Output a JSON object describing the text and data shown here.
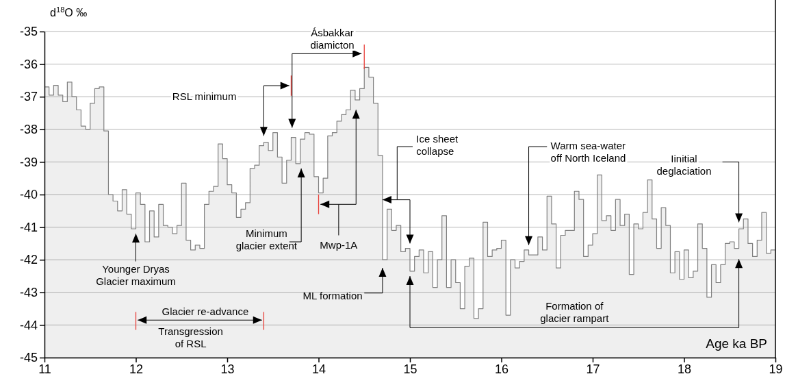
{
  "chart_data": {
    "type": "area",
    "xlabel": "Age ka BP",
    "ylabel": "d$^{18}$O ‰",
    "xlim": [
      11,
      19
    ],
    "ylim": [
      -45,
      -35
    ],
    "xticks": [
      11,
      12,
      13,
      14,
      15,
      16,
      17,
      18,
      19
    ],
    "yticks": [
      -45,
      -44,
      -43,
      -42,
      -41,
      -40,
      -39,
      -38,
      -37,
      -36,
      -35
    ],
    "grid": "y",
    "series": [
      {
        "color": "#808080",
        "x": [
          11,
          11.05,
          11.05,
          11.1,
          11.1,
          11.15,
          11.15,
          11.2,
          11.2,
          11.25,
          11.25,
          11.3,
          11.3,
          11.35,
          11.35,
          11.4,
          11.4,
          11.45,
          11.45,
          11.5,
          11.5,
          11.55,
          11.55,
          11.6,
          11.6,
          11.65,
          11.65,
          11.7,
          11.7,
          11.75,
          11.75,
          11.8,
          11.8,
          11.85,
          11.85,
          11.9,
          11.9,
          11.95,
          11.95,
          12,
          12,
          12.05,
          12.05,
          12.1,
          12.1,
          12.15,
          12.15,
          12.2,
          12.2,
          12.25,
          12.25,
          12.3,
          12.3,
          12.35,
          12.35,
          12.4,
          12.4,
          12.45,
          12.45,
          12.5,
          12.5,
          12.55,
          12.55,
          12.6,
          12.6,
          12.65,
          12.65,
          12.7,
          12.7,
          12.75,
          12.75,
          12.8,
          12.8,
          12.85,
          12.85,
          12.9,
          12.9,
          12.95,
          12.95,
          13,
          13,
          13.05,
          13.05,
          13.1,
          13.1,
          13.15,
          13.15,
          13.2,
          13.2,
          13.25,
          13.25,
          13.3,
          13.3,
          13.35,
          13.35,
          13.4,
          13.4,
          13.45,
          13.45,
          13.5,
          13.5,
          13.55,
          13.55,
          13.6,
          13.6,
          13.65,
          13.65,
          13.7,
          13.7,
          13.75,
          13.75,
          13.8,
          13.8,
          13.85,
          13.85,
          13.9,
          13.9,
          13.95,
          13.95,
          14,
          14,
          14.05,
          14.05,
          14.1,
          14.1,
          14.15,
          14.15,
          14.2,
          14.2,
          14.25,
          14.25,
          14.3,
          14.3,
          14.35,
          14.35,
          14.4,
          14.4,
          14.45,
          14.45,
          14.5,
          14.5,
          14.55,
          14.55,
          14.6,
          14.6,
          14.65,
          14.65,
          14.7,
          14.7,
          14.75,
          14.75,
          14.8,
          14.8,
          14.85,
          14.85,
          14.9,
          14.9,
          14.95,
          14.95,
          15,
          15,
          15.05,
          15.05,
          15.1,
          15.1,
          15.15,
          15.15,
          15.2,
          15.2,
          15.25,
          15.25,
          15.3,
          15.3,
          15.35,
          15.35,
          15.4,
          15.4,
          15.45,
          15.45,
          15.5,
          15.5,
          15.55,
          15.55,
          15.6,
          15.6,
          15.65,
          15.65,
          15.7,
          15.7,
          15.75,
          15.75,
          15.8,
          15.8,
          15.85,
          15.85,
          15.9,
          15.9,
          15.95,
          15.95,
          16,
          16,
          16.05,
          16.05,
          16.1,
          16.1,
          16.15,
          16.15,
          16.2,
          16.2,
          16.25,
          16.25,
          16.3,
          16.3,
          16.35,
          16.35,
          16.4,
          16.4,
          16.45,
          16.45,
          16.5,
          16.5,
          16.55,
          16.55,
          16.6,
          16.6,
          16.65,
          16.65,
          16.7,
          16.7,
          16.75,
          16.75,
          16.8,
          16.8,
          16.85,
          16.85,
          16.9,
          16.9,
          16.95,
          16.95,
          17,
          17,
          17.05,
          17.05,
          17.1,
          17.1,
          17.15,
          17.15,
          17.2,
          17.2,
          17.25,
          17.25,
          17.3,
          17.3,
          17.35,
          17.35,
          17.4,
          17.4,
          17.45,
          17.45,
          17.5,
          17.5,
          17.55,
          17.55,
          17.6,
          17.6,
          17.65,
          17.65,
          17.7,
          17.7,
          17.75,
          17.75,
          17.8,
          17.8,
          17.85,
          17.85,
          17.9,
          17.9,
          17.95,
          17.95,
          18,
          18,
          18.05,
          18.05,
          18.1,
          18.1,
          18.15,
          18.15,
          18.2,
          18.2,
          18.25,
          18.25,
          18.3,
          18.3,
          18.35,
          18.35,
          18.4,
          18.4,
          18.45,
          18.45,
          18.5,
          18.5,
          18.55,
          18.55,
          18.6,
          18.6,
          18.65,
          18.65,
          18.7,
          18.7,
          18.75,
          18.75,
          18.8,
          18.8,
          18.85,
          18.85,
          18.9,
          18.9,
          18.95,
          18.95,
          19
        ],
        "values": [
          -36.7,
          -36.7,
          -36.95,
          -36.95,
          -36.65,
          -36.65,
          -36.95,
          -36.95,
          -37.15,
          -37.15,
          -36.55,
          -36.55,
          -37.0,
          -37.0,
          -37.4,
          -37.4,
          -37.9,
          -37.9,
          -38.0,
          -38.0,
          -37.2,
          -37.2,
          -36.75,
          -36.75,
          -36.7,
          -36.7,
          -38.05,
          -38.05,
          -40.0,
          -40.0,
          -40.2,
          -40.2,
          -40.5,
          -40.5,
          -39.85,
          -39.85,
          -40.6,
          -40.6,
          -41.05,
          -41.05,
          -39.95,
          -39.95,
          -40.3,
          -40.3,
          -41.45,
          -41.45,
          -40.5,
          -40.5,
          -41.3,
          -41.3,
          -40.3,
          -40.3,
          -40.95,
          -40.95,
          -41.0,
          -41.0,
          -41.2,
          -41.2,
          -40.95,
          -40.95,
          -39.65,
          -39.65,
          -41.4,
          -41.4,
          -41.7,
          -41.7,
          -41.55,
          -41.55,
          -41.65,
          -41.65,
          -40.3,
          -40.3,
          -39.9,
          -39.9,
          -39.75,
          -39.75,
          -38.45,
          -38.45,
          -38.9,
          -38.9,
          -39.7,
          -39.7,
          -39.95,
          -39.95,
          -40.7,
          -40.7,
          -40.45,
          -40.45,
          -40.25,
          -40.25,
          -39.2,
          -39.2,
          -39.1,
          -39.1,
          -38.5,
          -38.5,
          -38.4,
          -38.4,
          -38.65,
          -38.65,
          -38.1,
          -38.1,
          -38.85,
          -38.85,
          -39.65,
          -39.65,
          -38.95,
          -38.95,
          -38.25,
          -38.25,
          -39.05,
          -39.05,
          -38.3,
          -38.3,
          -38.1,
          -38.1,
          -38.15,
          -38.15,
          -39.45,
          -39.45,
          -39.95,
          -39.95,
          -39.5,
          -39.5,
          -38.2,
          -38.2,
          -38.1,
          -38.1,
          -37.75,
          -37.75,
          -37.55,
          -37.55,
          -37.4,
          -37.4,
          -36.8,
          -36.8,
          -37.1,
          -37.1,
          -36.75,
          -36.75,
          -36.1,
          -36.1,
          -36.4,
          -36.4,
          -37.2,
          -37.2,
          -38.8,
          -38.8,
          -42.0,
          -42.0,
          -40.45,
          -40.45,
          -41.1,
          -41.1,
          -40.95,
          -40.95,
          -41.75,
          -41.75,
          -41.65,
          -41.65,
          -42.35,
          -42.35,
          -41.9,
          -41.9,
          -41.7,
          -41.7,
          -42.4,
          -42.4,
          -41.75,
          -41.75,
          -42.85,
          -42.85,
          -42.0,
          -42.0,
          -40.65,
          -40.65,
          -42.85,
          -42.85,
          -42.0,
          -42.0,
          -42.7,
          -42.7,
          -43.5,
          -43.5,
          -42.2,
          -42.2,
          -41.95,
          -41.95,
          -43.8,
          -43.8,
          -43.5,
          -43.5,
          -40.85,
          -40.85,
          -41.9,
          -41.9,
          -41.7,
          -41.7,
          -41.65,
          -41.65,
          -41.4,
          -41.4,
          -43.7,
          -43.7,
          -42.0,
          -42.0,
          -42.25,
          -42.25,
          -42.05,
          -42.05,
          -41.7,
          -41.7,
          -41.85,
          -41.85,
          -41.85,
          -41.85,
          -41.3,
          -41.3,
          -41.7,
          -41.7,
          -40.05,
          -40.05,
          -40.9,
          -40.9,
          -42.25,
          -42.25,
          -41.25,
          -41.25,
          -41.1,
          -41.1,
          -41.1,
          -41.1,
          -39.9,
          -39.9,
          -40.15,
          -40.15,
          -41.9,
          -41.9,
          -41.55,
          -41.55,
          -41.2,
          -41.2,
          -39.4,
          -39.4,
          -40.8,
          -40.8,
          -40.65,
          -40.65,
          -41.1,
          -41.1,
          -40.15,
          -40.15,
          -40.95,
          -40.95,
          -40.6,
          -40.6,
          -42.45,
          -42.45,
          -40.9,
          -40.9,
          -41.05,
          -41.05,
          -40.55,
          -40.55,
          -39.55,
          -39.55,
          -40.75,
          -40.75,
          -41.65,
          -41.65,
          -40.4,
          -40.4,
          -40.95,
          -40.95,
          -42.4,
          -42.4,
          -41.75,
          -41.75,
          -42.6,
          -42.6,
          -41.7,
          -41.7,
          -42.55,
          -42.55,
          -42.35,
          -42.35,
          -40.9,
          -40.9,
          -41.65,
          -41.65,
          -43.15,
          -43.15,
          -42.15,
          -42.15,
          -42.7,
          -42.7,
          -42.15,
          -42.15,
          -41.5,
          -41.5,
          -41.45,
          -41.45,
          -41.65,
          -41.65,
          -41.05,
          -41.05,
          -40.75,
          -40.75,
          -41.5,
          -41.5,
          -41.9,
          -41.9,
          -41.4,
          -41.4,
          -40.55,
          -40.55,
          -41.8,
          -41.8,
          -41.7,
          -41.7
        ]
      }
    ],
    "annotations": [
      "Ásbakkar\ndiamicton",
      "RSL minimum",
      "Minimum\nglacier extent",
      "Mwp-1A",
      {
        "text": "Ice sheet\ncollapse",
        "x": 14.7,
        "y": -40.16
      },
      "ML formation",
      "Warm sea-water\noff North Iceland",
      "Iinitial\ndeglaciation",
      "Younger Dryas\nGlacier maximum",
      "Glacier re-advance",
      "Transgression\nof RSL",
      "Formation of\nglacier rampart"
    ]
  }
}
